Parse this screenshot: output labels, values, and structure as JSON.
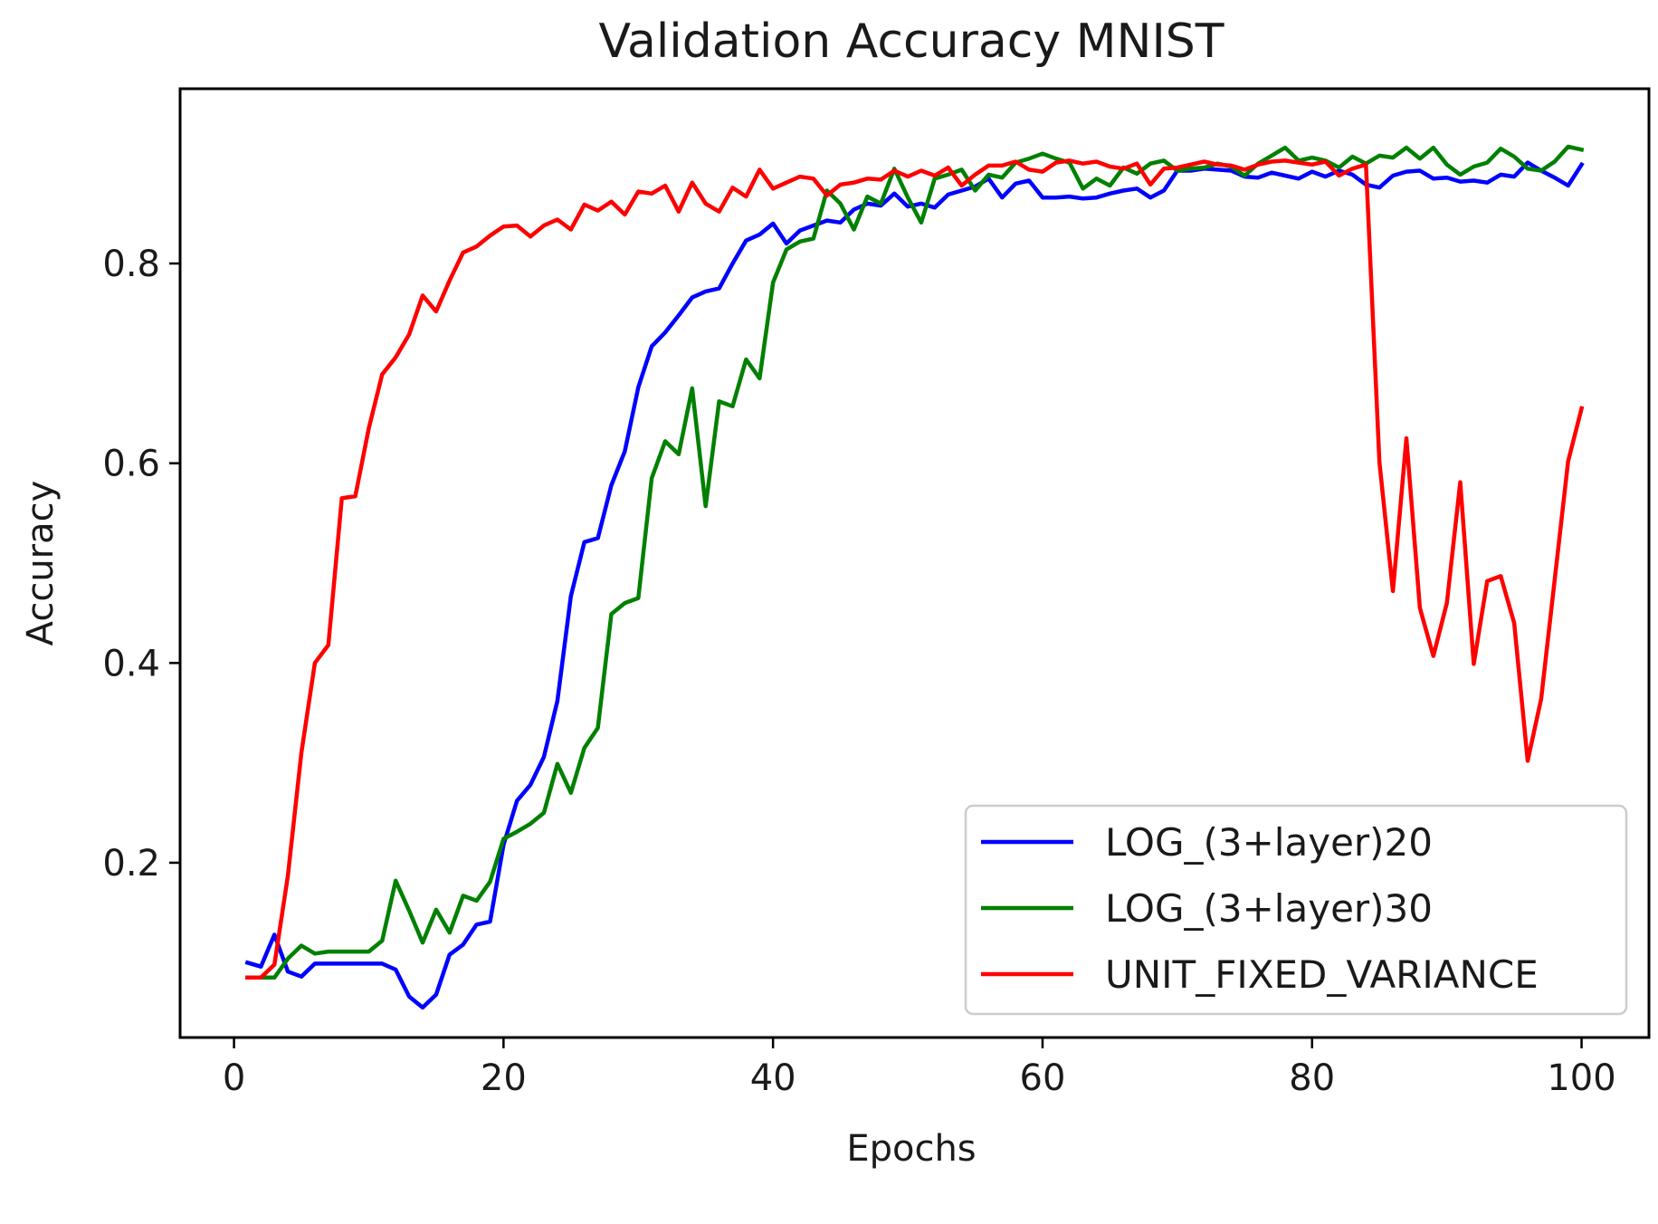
{
  "chart_data": {
    "type": "line",
    "title": "Validation Accuracy MNIST",
    "xlabel": "Epochs",
    "ylabel": "Accuracy",
    "xlim": [
      -4,
      105
    ],
    "ylim": [
      0.025,
      0.975
    ],
    "xticks": [
      0,
      20,
      40,
      60,
      80,
      100
    ],
    "yticks": [
      0.2,
      0.4,
      0.6,
      0.8
    ],
    "xtick_labels": [
      "0",
      "20",
      "40",
      "60",
      "80",
      "100"
    ],
    "ytick_labels": [
      "0.2",
      "0.4",
      "0.6",
      "0.8"
    ],
    "grid": false,
    "legend_position": "lower-right",
    "x": [
      1,
      2,
      3,
      4,
      5,
      6,
      7,
      8,
      9,
      10,
      11,
      12,
      13,
      14,
      15,
      16,
      17,
      18,
      19,
      20,
      21,
      22,
      23,
      24,
      25,
      26,
      27,
      28,
      29,
      30,
      31,
      32,
      33,
      34,
      35,
      36,
      37,
      38,
      39,
      40,
      41,
      42,
      43,
      44,
      45,
      46,
      47,
      48,
      49,
      50,
      51,
      52,
      53,
      54,
      55,
      56,
      57,
      58,
      59,
      60,
      61,
      62,
      63,
      64,
      65,
      66,
      67,
      68,
      69,
      70,
      71,
      72,
      73,
      74,
      75,
      76,
      77,
      78,
      79,
      80,
      81,
      82,
      83,
      84,
      85,
      86,
      87,
      88,
      89,
      90,
      91,
      92,
      93,
      94,
      95,
      96,
      97,
      98,
      99,
      100
    ],
    "series": [
      {
        "name": "LOG_(3+layer)20",
        "color": "#0000ff",
        "values": [
          0.1,
          0.096,
          0.128,
          0.091,
          0.086,
          0.099,
          0.099,
          0.099,
          0.099,
          0.099,
          0.099,
          0.093,
          0.066,
          0.055,
          0.068,
          0.108,
          0.118,
          0.138,
          0.141,
          0.218,
          0.262,
          0.278,
          0.306,
          0.362,
          0.467,
          0.521,
          0.525,
          0.578,
          0.612,
          0.676,
          0.717,
          0.731,
          0.748,
          0.766,
          0.772,
          0.775,
          0.8,
          0.823,
          0.829,
          0.84,
          0.82,
          0.833,
          0.838,
          0.843,
          0.841,
          0.854,
          0.86,
          0.858,
          0.87,
          0.857,
          0.86,
          0.856,
          0.869,
          0.873,
          0.877,
          0.885,
          0.866,
          0.88,
          0.883,
          0.866,
          0.866,
          0.867,
          0.865,
          0.866,
          0.87,
          0.873,
          0.875,
          0.866,
          0.873,
          0.893,
          0.893,
          0.895,
          0.894,
          0.893,
          0.887,
          0.886,
          0.891,
          0.888,
          0.885,
          0.892,
          0.887,
          0.893,
          0.889,
          0.879,
          0.876,
          0.888,
          0.892,
          0.893,
          0.885,
          0.886,
          0.882,
          0.883,
          0.881,
          0.889,
          0.887,
          0.901,
          0.893,
          0.886,
          0.878,
          0.899
        ]
      },
      {
        "name": "LOG_(3+layer)30",
        "color": "#008000",
        "values": [
          0.085,
          0.085,
          0.085,
          0.104,
          0.117,
          0.109,
          0.111,
          0.111,
          0.111,
          0.111,
          0.122,
          0.182,
          0.152,
          0.12,
          0.153,
          0.13,
          0.167,
          0.162,
          0.181,
          0.224,
          0.231,
          0.239,
          0.25,
          0.299,
          0.27,
          0.315,
          0.335,
          0.449,
          0.46,
          0.465,
          0.585,
          0.622,
          0.609,
          0.675,
          0.557,
          0.662,
          0.657,
          0.704,
          0.685,
          0.781,
          0.814,
          0.822,
          0.825,
          0.873,
          0.86,
          0.834,
          0.867,
          0.86,
          0.895,
          0.866,
          0.841,
          0.885,
          0.889,
          0.894,
          0.873,
          0.889,
          0.886,
          0.901,
          0.905,
          0.91,
          0.905,
          0.901,
          0.875,
          0.885,
          0.878,
          0.896,
          0.89,
          0.9,
          0.903,
          0.893,
          0.895,
          0.896,
          0.9,
          0.897,
          0.888,
          0.9,
          0.908,
          0.916,
          0.903,
          0.906,
          0.903,
          0.896,
          0.907,
          0.9,
          0.908,
          0.906,
          0.916,
          0.905,
          0.916,
          0.899,
          0.889,
          0.897,
          0.901,
          0.915,
          0.907,
          0.895,
          0.893,
          0.902,
          0.917,
          0.914
        ]
      },
      {
        "name": "UNIT_FIXED_VARIANCE",
        "color": "#ff0000",
        "values": [
          0.085,
          0.085,
          0.098,
          0.187,
          0.31,
          0.4,
          0.418,
          0.565,
          0.567,
          0.635,
          0.689,
          0.706,
          0.729,
          0.768,
          0.752,
          0.783,
          0.811,
          0.817,
          0.828,
          0.837,
          0.838,
          0.827,
          0.838,
          0.844,
          0.834,
          0.859,
          0.853,
          0.862,
          0.849,
          0.872,
          0.87,
          0.878,
          0.852,
          0.881,
          0.86,
          0.852,
          0.876,
          0.867,
          0.894,
          0.875,
          0.881,
          0.887,
          0.885,
          0.868,
          0.879,
          0.881,
          0.885,
          0.884,
          0.893,
          0.887,
          0.893,
          0.888,
          0.896,
          0.878,
          0.889,
          0.898,
          0.898,
          0.902,
          0.894,
          0.892,
          0.901,
          0.903,
          0.9,
          0.902,
          0.897,
          0.895,
          0.9,
          0.879,
          0.895,
          0.896,
          0.899,
          0.902,
          0.899,
          0.898,
          0.894,
          0.899,
          0.902,
          0.903,
          0.901,
          0.899,
          0.902,
          0.888,
          0.895,
          0.899,
          0.601,
          0.472,
          0.625,
          0.455,
          0.407,
          0.46,
          0.581,
          0.399,
          0.482,
          0.487,
          0.44,
          0.302,
          0.364,
          0.483,
          0.602,
          0.655
        ]
      }
    ]
  }
}
